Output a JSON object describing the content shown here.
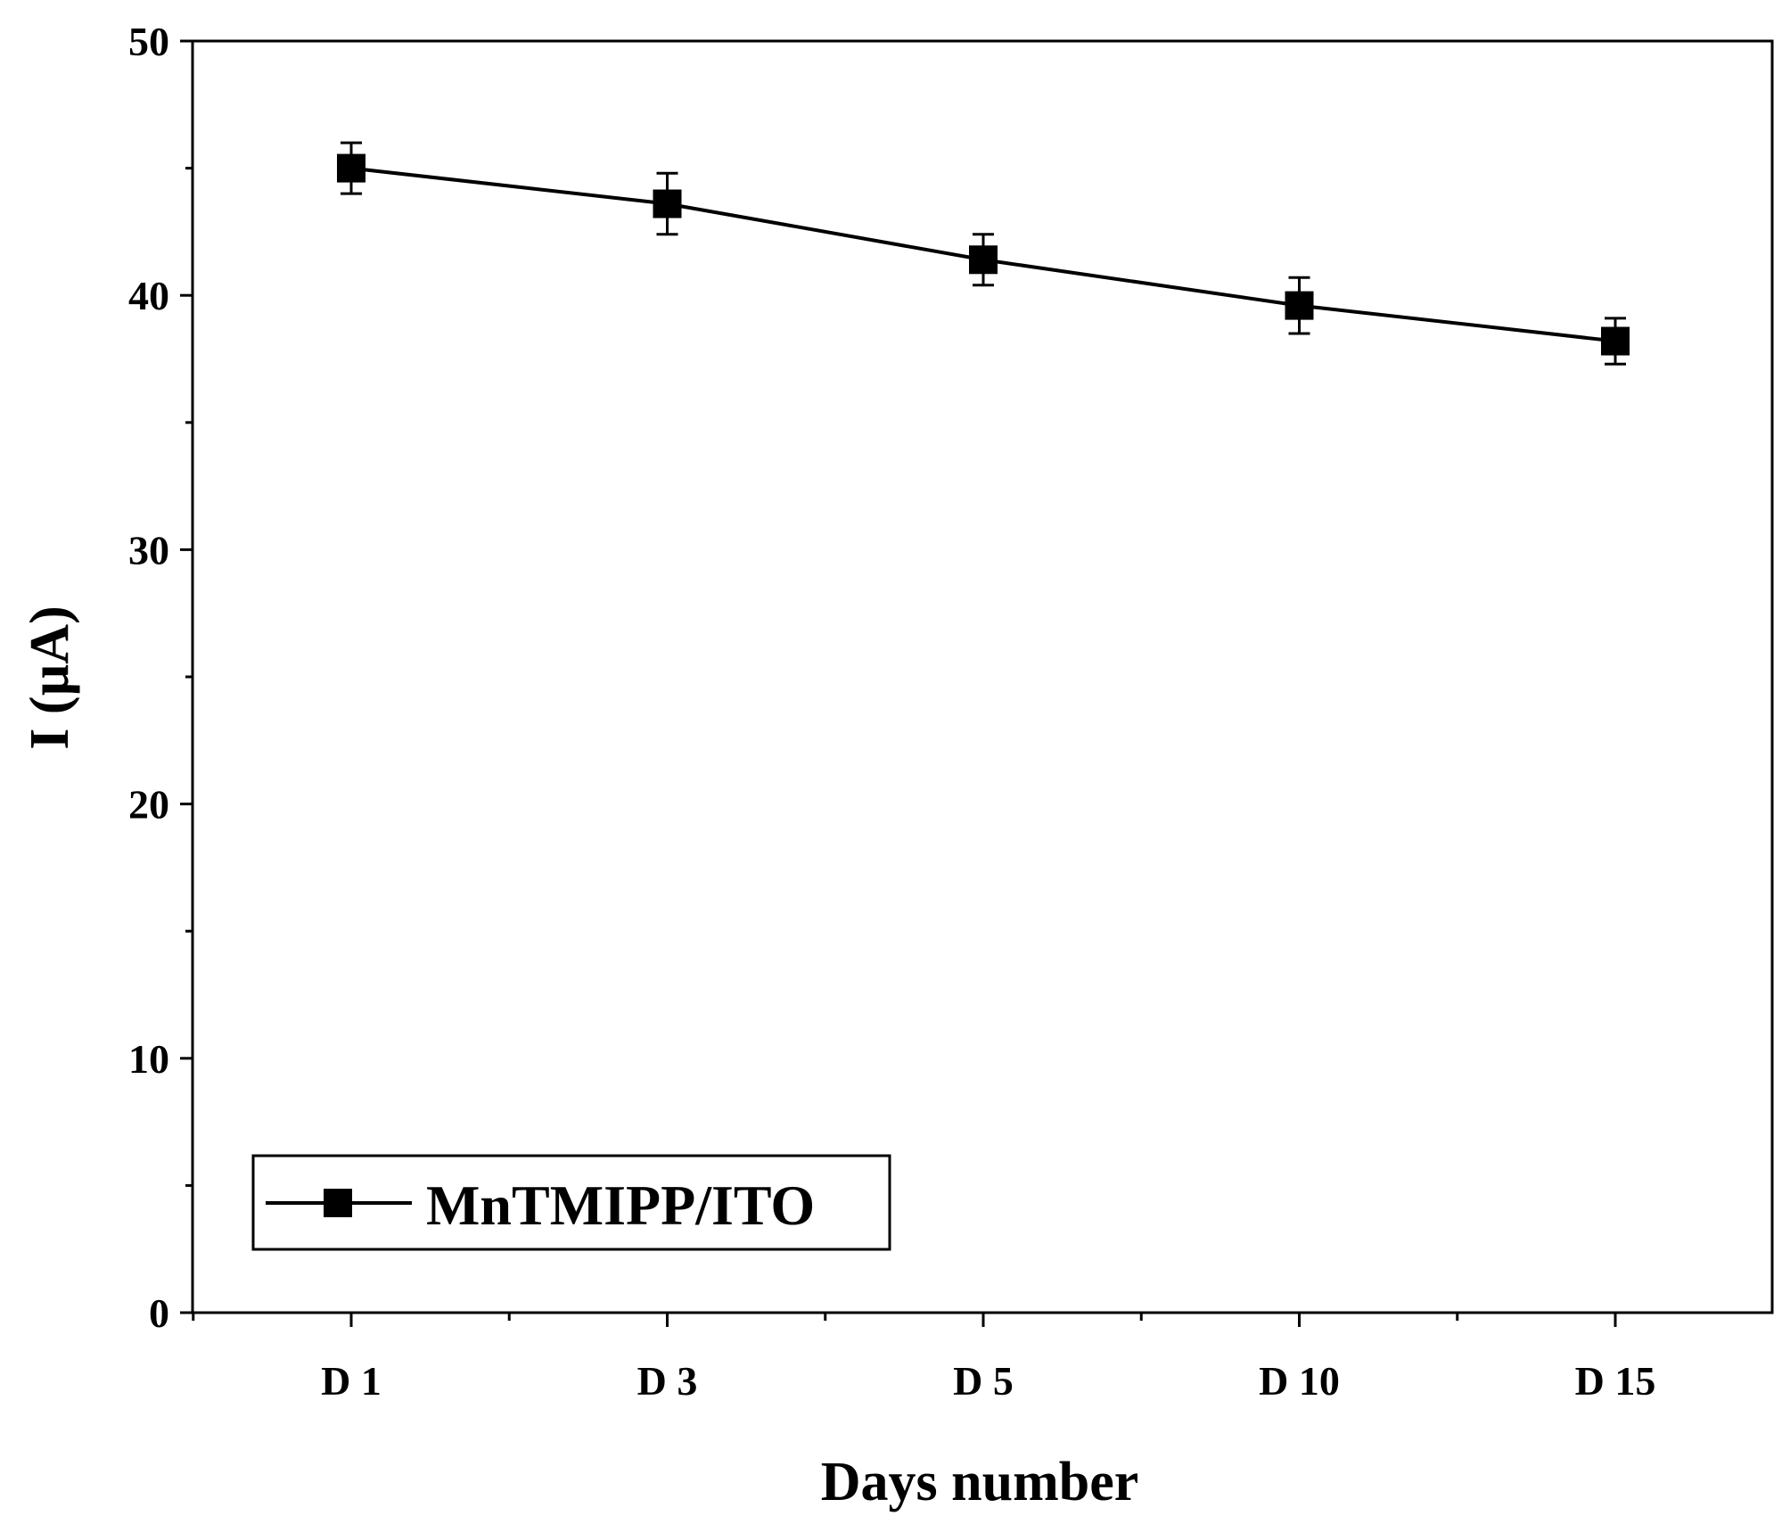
{
  "chart_data": {
    "type": "line",
    "title": "",
    "xlabel": "Days number",
    "ylabel": "I (µA)",
    "categories": [
      "D 1",
      "D 3",
      "D 5",
      "D 10",
      "D 15"
    ],
    "ylim": [
      0,
      50
    ],
    "yticks": [
      "0",
      "10",
      "20",
      "30",
      "40",
      "50"
    ],
    "grid": false,
    "legend_position": "bottom-left",
    "series": [
      {
        "name": "MnTMIPP/ITO",
        "values": [
          45.0,
          43.6,
          41.4,
          39.6,
          38.2
        ],
        "errors": [
          1.0,
          1.2,
          1.0,
          1.1,
          0.9
        ],
        "color": "#000000",
        "marker": "square"
      }
    ]
  }
}
